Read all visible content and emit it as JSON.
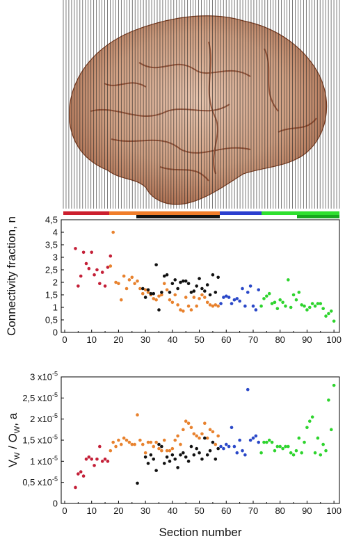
{
  "brain_image": {
    "description_icon": "brain-sections-icon"
  },
  "region_bar": {
    "top_colors": [
      "#cc1f2e",
      "#f07d2a",
      "#2b3fcf",
      "#2fe02f"
    ],
    "bottom_colors": [
      "#111111",
      "#18a81e"
    ]
  },
  "chart_data": [
    {
      "type": "scatter",
      "ylabel": "Connectivity fraction, n",
      "xlim": [
        0,
        101
      ],
      "ylim": [
        0,
        4.5
      ],
      "xticks": [
        "0",
        "10",
        "20",
        "30",
        "40",
        "50",
        "60",
        "70",
        "80",
        "90",
        "100"
      ],
      "yticks": [
        "0",
        "0,5",
        "1",
        "1,5",
        "2",
        "2,5",
        "3",
        "3,5",
        "4",
        "4,5"
      ],
      "series": [
        {
          "color": "#c42038",
          "points": [
            [
              4,
              3.35
            ],
            [
              5,
              1.85
            ],
            [
              6,
              2.25
            ],
            [
              7,
              3.2
            ],
            [
              8,
              2.75
            ],
            [
              9,
              2.55
            ],
            [
              10,
              3.2
            ],
            [
              11,
              2.3
            ],
            [
              12,
              2.5
            ],
            [
              13,
              1.95
            ],
            [
              14,
              2.4
            ],
            [
              15,
              1.85
            ],
            [
              16,
              2.6
            ],
            [
              17,
              3.05
            ]
          ]
        },
        {
          "color": "#e8822e",
          "points": [
            [
              17,
              2.65
            ],
            [
              18,
              4.0
            ],
            [
              19,
              2.0
            ],
            [
              20,
              1.95
            ],
            [
              21,
              1.3
            ],
            [
              22,
              2.25
            ],
            [
              23,
              1.75
            ],
            [
              24,
              2.1
            ],
            [
              25,
              2.2
            ],
            [
              26,
              1.95
            ],
            [
              27,
              2.05
            ],
            [
              28,
              1.75
            ],
            [
              29,
              1.55
            ],
            [
              30,
              1.7
            ],
            [
              31,
              1.6
            ],
            [
              32,
              1.5
            ],
            [
              33,
              1.35
            ],
            [
              34,
              1.3
            ],
            [
              35,
              1.45
            ],
            [
              36,
              1.5
            ],
            [
              37,
              1.95
            ],
            [
              38,
              1.7
            ],
            [
              39,
              1.3
            ],
            [
              40,
              1.2
            ],
            [
              41,
              1.5
            ],
            [
              42,
              1.1
            ],
            [
              43,
              0.9
            ],
            [
              44,
              0.85
            ],
            [
              45,
              1.4
            ],
            [
              46,
              1.05
            ],
            [
              47,
              0.9
            ],
            [
              48,
              1.4
            ],
            [
              49,
              1.05
            ],
            [
              50,
              1.35
            ],
            [
              51,
              1.5
            ],
            [
              52,
              1.4
            ],
            [
              53,
              1.2
            ],
            [
              54,
              1.1
            ],
            [
              55,
              1.05
            ],
            [
              56,
              1.1
            ],
            [
              57,
              1.05
            ]
          ]
        },
        {
          "color": "#111111",
          "points": [
            [
              29,
              1.75
            ],
            [
              30,
              1.4
            ],
            [
              31,
              1.7
            ],
            [
              32,
              1.55
            ],
            [
              33,
              1.55
            ],
            [
              34,
              2.7
            ],
            [
              35,
              0.9
            ],
            [
              36,
              1.6
            ],
            [
              37,
              2.25
            ],
            [
              38,
              2.3
            ],
            [
              39,
              1.6
            ],
            [
              40,
              1.95
            ],
            [
              41,
              2.1
            ],
            [
              42,
              1.75
            ],
            [
              43,
              2.0
            ],
            [
              44,
              2.05
            ],
            [
              45,
              2.05
            ],
            [
              46,
              1.95
            ],
            [
              47,
              1.6
            ],
            [
              48,
              1.65
            ],
            [
              49,
              1.85
            ],
            [
              50,
              2.15
            ],
            [
              51,
              1.75
            ],
            [
              52,
              1.65
            ],
            [
              53,
              1.9
            ],
            [
              54,
              1.5
            ],
            [
              55,
              2.3
            ],
            [
              56,
              1.6
            ],
            [
              57,
              2.2
            ]
          ]
        },
        {
          "color": "#2a48c8",
          "points": [
            [
              58,
              1.15
            ],
            [
              59,
              1.4
            ],
            [
              60,
              1.45
            ],
            [
              61,
              1.4
            ],
            [
              62,
              1.15
            ],
            [
              63,
              1.3
            ],
            [
              64,
              1.35
            ],
            [
              65,
              1.25
            ],
            [
              66,
              1.75
            ],
            [
              67,
              1.05
            ],
            [
              68,
              1.6
            ],
            [
              69,
              1.85
            ],
            [
              70,
              1.05
            ],
            [
              71,
              0.9
            ],
            [
              72,
              1.7
            ]
          ]
        },
        {
          "color": "#2ed42e",
          "points": [
            [
              73,
              1.05
            ],
            [
              74,
              1.35
            ],
            [
              75,
              1.45
            ],
            [
              76,
              1.55
            ],
            [
              77,
              1.15
            ],
            [
              78,
              1.2
            ],
            [
              79,
              0.95
            ],
            [
              80,
              1.3
            ],
            [
              81,
              1.2
            ],
            [
              82,
              1.05
            ],
            [
              83,
              2.1
            ],
            [
              84,
              1.0
            ],
            [
              85,
              1.5
            ],
            [
              86,
              1.3
            ],
            [
              87,
              1.6
            ],
            [
              88,
              1.1
            ],
            [
              89,
              1.05
            ],
            [
              90,
              0.9
            ],
            [
              91,
              1.0
            ],
            [
              92,
              1.15
            ],
            [
              93,
              1.05
            ],
            [
              94,
              1.15
            ],
            [
              95,
              1.15
            ],
            [
              96,
              0.95
            ],
            [
              97,
              0.65
            ],
            [
              98,
              0.75
            ],
            [
              99,
              0.85
            ],
            [
              100,
              0.45
            ]
          ]
        }
      ]
    },
    {
      "type": "scatter",
      "ylabel_parts": {
        "base": "V",
        "sub1": "W",
        "mid": " / O",
        "sub2": "W",
        "tail": ", a"
      },
      "xlabel": "Section number",
      "xlim": [
        0,
        101
      ],
      "ylim": [
        0,
        3e-05
      ],
      "xticks": [
        "0",
        "10",
        "20",
        "30",
        "40",
        "50",
        "60",
        "70",
        "80",
        "90",
        "100"
      ],
      "yticks": [
        {
          "mant": "0",
          "exp": ""
        },
        {
          "mant": "0,5 x10",
          "exp": "-5"
        },
        {
          "mant": "1 x10",
          "exp": "-5"
        },
        {
          "mant": "1,5 x10",
          "exp": "-5"
        },
        {
          "mant": "2 x10",
          "exp": "-5"
        },
        {
          "mant": "2,5 x10",
          "exp": "-5"
        },
        {
          "mant": "3 x10",
          "exp": "-5"
        }
      ],
      "series": [
        {
          "color": "#c42038",
          "points": [
            [
              4,
              3.8e-06
            ],
            [
              5,
              7e-06
            ],
            [
              6,
              7.5e-06
            ],
            [
              7,
              6.5e-06
            ],
            [
              8,
              1.05e-05
            ],
            [
              9,
              1.1e-05
            ],
            [
              10,
              1.05e-05
            ],
            [
              11,
              9e-06
            ],
            [
              12,
              1.05e-05
            ],
            [
              13,
              1.35e-05
            ],
            [
              14,
              1e-05
            ],
            [
              15,
              1.05e-05
            ],
            [
              16,
              1e-05
            ]
          ]
        },
        {
          "color": "#e8822e",
          "points": [
            [
              17,
              1.25e-05
            ],
            [
              18,
              1.45e-05
            ],
            [
              19,
              1.35e-05
            ],
            [
              20,
              1.5e-05
            ],
            [
              21,
              1.4e-05
            ],
            [
              22,
              1.55e-05
            ],
            [
              23,
              1.5e-05
            ],
            [
              24,
              1.45e-05
            ],
            [
              25,
              1.4e-05
            ],
            [
              26,
              1.4e-05
            ],
            [
              27,
              2.1e-05
            ],
            [
              28,
              1.5e-05
            ],
            [
              29,
              1.4e-05
            ],
            [
              30,
              1.2e-05
            ],
            [
              31,
              1.45e-05
            ],
            [
              32,
              1.45e-05
            ],
            [
              33,
              1.35e-05
            ],
            [
              34,
              1.45e-05
            ],
            [
              35,
              1.3e-05
            ],
            [
              36,
              1.25e-05
            ],
            [
              37,
              1.5e-05
            ],
            [
              38,
              1.25e-05
            ],
            [
              39,
              1.25e-05
            ],
            [
              40,
              1.3e-05
            ],
            [
              41,
              1.5e-05
            ],
            [
              42,
              1.6e-05
            ],
            [
              43,
              1.4e-05
            ],
            [
              44,
              1.75e-05
            ],
            [
              45,
              1.95e-05
            ],
            [
              46,
              1.9e-05
            ],
            [
              47,
              1.8e-05
            ],
            [
              48,
              1.65e-05
            ],
            [
              49,
              1.6e-05
            ],
            [
              50,
              1.55e-05
            ],
            [
              51,
              1.65e-05
            ],
            [
              52,
              1.9e-05
            ],
            [
              53,
              1.55e-05
            ],
            [
              54,
              1.75e-05
            ],
            [
              55,
              1.7e-05
            ],
            [
              56,
              1.4e-05
            ],
            [
              57,
              1.6e-05
            ]
          ]
        },
        {
          "color": "#111111",
          "points": [
            [
              27,
              4.8e-06
            ],
            [
              30,
              1.1e-05
            ],
            [
              31,
              9.5e-06
            ],
            [
              32,
              1.15e-05
            ],
            [
              33,
              1.05e-05
            ],
            [
              34,
              7.8e-06
            ],
            [
              35,
              1.4e-05
            ],
            [
              36,
              1.35e-05
            ],
            [
              37,
              9.5e-06
            ],
            [
              38,
              1.1e-05
            ],
            [
              39,
              1e-05
            ],
            [
              40,
              1.15e-05
            ],
            [
              41,
              1.05e-05
            ],
            [
              42,
              8.5e-06
            ],
            [
              43,
              1.15e-05
            ],
            [
              44,
              1.2e-05
            ],
            [
              45,
              1.1e-05
            ],
            [
              46,
              1e-05
            ],
            [
              47,
              1.35e-05
            ],
            [
              48,
              1.15e-05
            ],
            [
              49,
              1.3e-05
            ],
            [
              50,
              1.2e-05
            ],
            [
              51,
              1.05e-05
            ],
            [
              52,
              1.55e-05
            ],
            [
              53,
              1.15e-05
            ],
            [
              54,
              1.25e-05
            ],
            [
              55,
              1.45e-05
            ],
            [
              56,
              1.05e-05
            ],
            [
              57,
              1.3e-05
            ]
          ]
        },
        {
          "color": "#2a48c8",
          "points": [
            [
              58,
              1.35e-05
            ],
            [
              59,
              1.3e-05
            ],
            [
              60,
              1.4e-05
            ],
            [
              61,
              1.35e-05
            ],
            [
              62,
              1.8e-05
            ],
            [
              63,
              1.35e-05
            ],
            [
              64,
              1.2e-05
            ],
            [
              65,
              1.5e-05
            ],
            [
              66,
              1.25e-05
            ],
            [
              67,
              1.15e-05
            ],
            [
              68,
              2.7e-05
            ],
            [
              69,
              1.5e-05
            ],
            [
              70,
              1.55e-05
            ],
            [
              71,
              1.6e-05
            ],
            [
              72,
              1.45e-05
            ]
          ]
        },
        {
          "color": "#2ed42e",
          "points": [
            [
              73,
              1.2e-05
            ],
            [
              74,
              1.45e-05
            ],
            [
              75,
              1.45e-05
            ],
            [
              76,
              1.5e-05
            ],
            [
              77,
              1.45e-05
            ],
            [
              78,
              1.25e-05
            ],
            [
              79,
              1.35e-05
            ],
            [
              80,
              1.35e-05
            ],
            [
              81,
              1.3e-05
            ],
            [
              82,
              1.35e-05
            ],
            [
              83,
              1.35e-05
            ],
            [
              84,
              1.2e-05
            ],
            [
              85,
              1.15e-05
            ],
            [
              86,
              1.25e-05
            ],
            [
              87,
              1.55e-05
            ],
            [
              88,
              1.2e-05
            ],
            [
              89,
              1.45e-05
            ],
            [
              90,
              1.8e-05
            ],
            [
              91,
              1.95e-05
            ],
            [
              92,
              2.05e-05
            ],
            [
              93,
              1.2e-05
            ],
            [
              94,
              1.55e-05
            ],
            [
              95,
              1.15e-05
            ],
            [
              96,
              1.4e-05
            ],
            [
              97,
              1.25e-05
            ],
            [
              98,
              2.45e-05
            ],
            [
              99,
              1.75e-05
            ],
            [
              100,
              2.8e-05
            ]
          ]
        }
      ]
    }
  ]
}
